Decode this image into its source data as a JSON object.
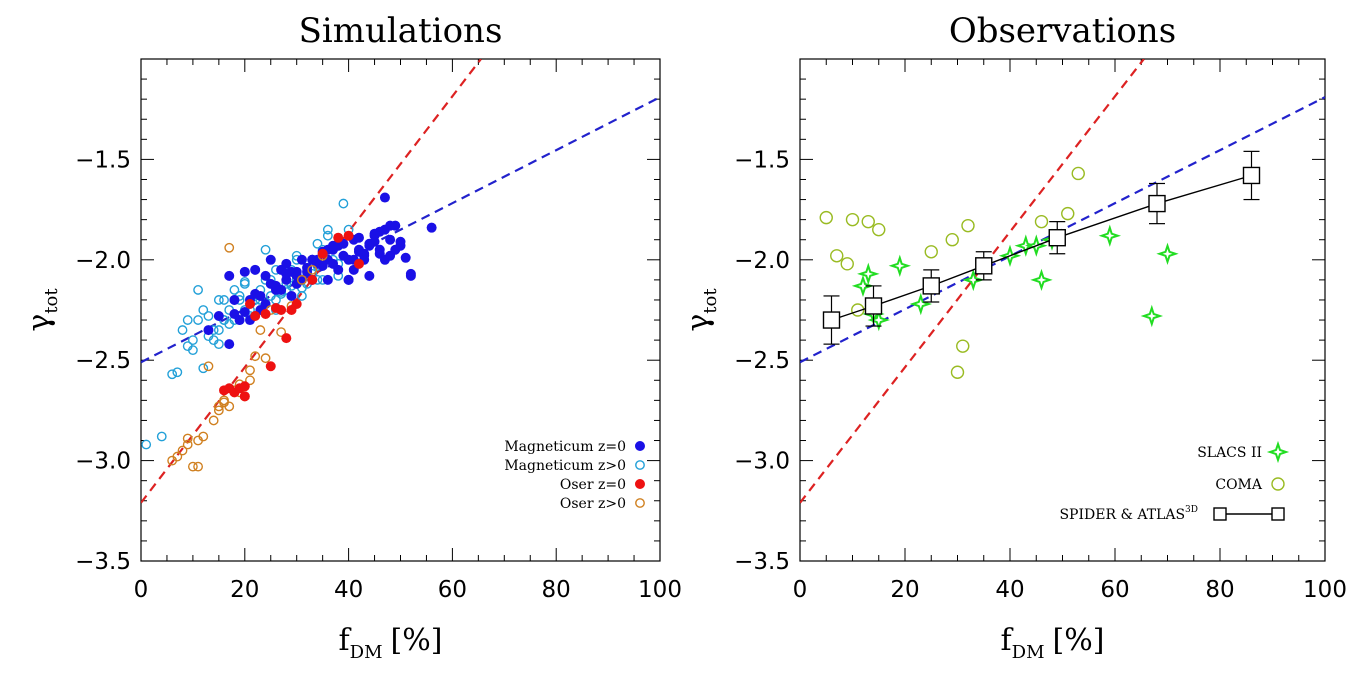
{
  "colors": {
    "magneticum": "#1a10e6",
    "magneticum_hi": "#22a0d8",
    "oser": "#ee1111",
    "oser_hi": "#d08020",
    "slacs": "#22dd22",
    "coma": "#99bb22",
    "fit_blue": "#2222cc",
    "fit_red": "#dd2222"
  },
  "chart_data": [
    {
      "type": "scatter",
      "title": "Simulations",
      "xlabel_main": "f",
      "xlabel_sub": "DM",
      "xlabel_unit": "[%]",
      "ylabel_main": "γ",
      "ylabel_sub": "tot",
      "xlim": [
        0,
        100
      ],
      "ylim": [
        -3.5,
        -1.0
      ],
      "x_ticks": [
        "0",
        "20",
        "40",
        "60",
        "80",
        "100"
      ],
      "x_tick_values": [
        0,
        20,
        40,
        60,
        80,
        100
      ],
      "y_ticks": [
        "−1.5",
        "−2.0",
        "−2.5",
        "−3.0",
        "−3.5"
      ],
      "y_tick_values": [
        -1.5,
        -2.0,
        -2.5,
        -3.0,
        -3.5
      ],
      "lines": [
        {
          "name": "fit-blue",
          "color": "#2222cc",
          "dash": true,
          "x": [
            0,
            100
          ],
          "y": [
            -2.51,
            -1.19
          ]
        },
        {
          "name": "fit-red",
          "color": "#dd2222",
          "dash": true,
          "x": [
            0,
            65.5
          ],
          "y": [
            -3.21,
            -1.0
          ]
        }
      ],
      "legend": {
        "position": "bottom-right",
        "entries": [
          {
            "label": "Magneticum z=0",
            "marker": "filled-circle",
            "color": "#1a10e6"
          },
          {
            "label": "Magneticum z>0",
            "marker": "open-circle",
            "color": "#22a0d8"
          },
          {
            "label": "Oser z=0",
            "marker": "filled-circle",
            "color": "#ee1111"
          },
          {
            "label": "Oser z>0",
            "marker": "open-circle",
            "color": "#d08020"
          }
        ]
      },
      "series": [
        {
          "key": "magneticum-z0",
          "marker": "filled-circle",
          "color": "#1a10e6",
          "x": [
            13,
            15,
            17,
            18,
            20,
            21,
            22,
            23,
            24,
            25,
            26,
            27,
            28,
            29,
            30,
            31,
            32,
            33,
            34,
            35,
            36,
            37,
            38,
            39,
            40,
            41,
            42,
            43,
            44,
            45,
            46,
            47,
            48,
            49,
            50,
            51,
            52,
            19,
            21,
            23,
            25,
            27,
            29,
            31,
            33,
            35,
            37,
            39,
            41,
            43,
            45,
            47,
            49,
            24,
            28,
            32,
            36,
            40,
            44,
            48,
            52,
            56,
            18,
            22,
            26,
            30,
            34,
            38,
            42,
            46,
            50,
            47,
            48,
            36,
            37,
            41,
            43,
            45,
            38,
            40,
            42,
            44,
            46,
            28,
            30,
            33,
            17,
            20
          ],
          "y": [
            -2.35,
            -2.28,
            -2.08,
            -2.27,
            -2.26,
            -2.2,
            -2.05,
            -2.18,
            -2.22,
            -2.0,
            -2.15,
            -2.05,
            -2.1,
            -2.18,
            -2.12,
            -2.0,
            -2.06,
            -2.1,
            -2.02,
            -2.03,
            -2.0,
            -1.95,
            -2.05,
            -1.98,
            -2.0,
            -1.9,
            -1.95,
            -2.0,
            -1.92,
            -1.88,
            -1.97,
            -1.85,
            -1.9,
            -1.95,
            -1.93,
            -1.99,
            -2.08,
            -2.3,
            -2.3,
            -2.25,
            -2.12,
            -2.15,
            -2.06,
            -2.1,
            -2.0,
            -1.96,
            -2.02,
            -1.92,
            -2.05,
            -1.98,
            -1.87,
            -2.0,
            -1.83,
            -2.08,
            -2.07,
            -2.04,
            -2.1,
            -2.1,
            -2.08,
            -1.98,
            -2.07,
            -1.84,
            -2.2,
            -2.17,
            -2.13,
            -2.06,
            -2.0,
            -1.93,
            -1.89,
            -1.95,
            -1.91,
            -1.69,
            -1.83,
            -1.95,
            -1.93,
            -2.0,
            -1.97,
            -1.91,
            -1.92,
            -2.1,
            -1.96,
            -1.93,
            -1.86,
            -2.02,
            -2.08,
            -2.0,
            -2.42,
            -2.06
          ]
        },
        {
          "key": "magneticum-z1",
          "marker": "open-circle",
          "color": "#22a0d8",
          "x": [
            1,
            4,
            6,
            7,
            8,
            9,
            10,
            11,
            12,
            13,
            14,
            15,
            16,
            17,
            18,
            19,
            20,
            21,
            22,
            23,
            24,
            25,
            26,
            27,
            28,
            29,
            30,
            31,
            32,
            33,
            34,
            35,
            36,
            37,
            38,
            10,
            12,
            14,
            16,
            18,
            20,
            22,
            24,
            26,
            28,
            30,
            32,
            34,
            36,
            38,
            13,
            15,
            17,
            19,
            21,
            23,
            25,
            27,
            29,
            31,
            33,
            35,
            39,
            40,
            11,
            9,
            15,
            19,
            23,
            27,
            31,
            35,
            38,
            16,
            18,
            20,
            24,
            26,
            30,
            34
          ],
          "y": [
            -2.92,
            -2.88,
            -2.57,
            -2.56,
            -2.35,
            -2.3,
            -2.4,
            -2.3,
            -2.25,
            -2.38,
            -2.35,
            -2.2,
            -2.3,
            -2.25,
            -2.3,
            -2.2,
            -2.12,
            -2.28,
            -2.2,
            -2.15,
            -2.22,
            -2.1,
            -2.25,
            -2.15,
            -2.12,
            -2.05,
            -2.1,
            -2.18,
            -2.08,
            -2.0,
            -2.1,
            -1.95,
            -1.85,
            -2.0,
            -1.93,
            -2.45,
            -2.54,
            -2.4,
            -2.2,
            -2.15,
            -2.25,
            -2.18,
            -2.1,
            -2.2,
            -2.15,
            -2.0,
            -2.12,
            -2.03,
            -1.88,
            -2.02,
            -2.28,
            -2.35,
            -2.32,
            -2.3,
            -2.25,
            -2.2,
            -2.18,
            -2.16,
            -2.13,
            -2.1,
            -2.07,
            -2.03,
            -1.72,
            -1.85,
            -2.15,
            -2.43,
            -2.42,
            -2.18,
            -2.2,
            -2.17,
            -2.14,
            -2.1,
            -2.08,
            -2.3,
            -2.2,
            -2.11,
            -1.95,
            -2.05,
            -1.98,
            -1.92
          ]
        },
        {
          "key": "oser-z0",
          "marker": "filled-circle",
          "color": "#ee1111",
          "x": [
            16,
            17,
            18,
            19,
            20,
            20,
            21,
            22,
            24,
            26,
            28,
            30,
            33,
            35,
            38,
            40,
            42,
            25,
            27,
            29
          ],
          "y": [
            -2.65,
            -2.64,
            -2.66,
            -2.64,
            -2.68,
            -2.63,
            -2.22,
            -2.28,
            -2.27,
            -2.24,
            -2.39,
            -2.22,
            -2.1,
            -1.97,
            -1.89,
            -1.88,
            -2.02,
            -2.53,
            -2.25,
            -2.25
          ]
        },
        {
          "key": "oser-z1",
          "marker": "open-circle",
          "color": "#d08020",
          "x": [
            6,
            7,
            8,
            9,
            10,
            11,
            12,
            14,
            15,
            16,
            17,
            18,
            19,
            20,
            21,
            22,
            23,
            25,
            27,
            29,
            31,
            33,
            35,
            17,
            13,
            9,
            11,
            19,
            21,
            24,
            15,
            16
          ],
          "y": [
            -3.0,
            -2.98,
            -2.95,
            -2.92,
            -3.03,
            -2.9,
            -2.88,
            -2.8,
            -2.75,
            -2.7,
            -2.73,
            -2.65,
            -2.62,
            -2.68,
            -2.55,
            -2.48,
            -2.35,
            -2.25,
            -2.36,
            -2.23,
            -2.1,
            -2.05,
            -1.98,
            -1.94,
            -2.53,
            -2.89,
            -3.03,
            -2.66,
            -2.6,
            -2.49,
            -2.73,
            -2.71
          ]
        }
      ]
    },
    {
      "type": "scatter",
      "title": "Observations",
      "xlabel_main": "f",
      "xlabel_sub": "DM",
      "xlabel_unit": "[%]",
      "ylabel_main": "γ",
      "ylabel_sub": "tot",
      "xlim": [
        0,
        100
      ],
      "ylim": [
        -3.5,
        -1.0
      ],
      "x_ticks": [
        "0",
        "20",
        "40",
        "60",
        "80",
        "100"
      ],
      "x_tick_values": [
        0,
        20,
        40,
        60,
        80,
        100
      ],
      "y_ticks": [
        "−1.5",
        "−2.0",
        "−2.5",
        "−3.0",
        "−3.5"
      ],
      "y_tick_values": [
        -1.5,
        -2.0,
        -2.5,
        -3.0,
        -3.5
      ],
      "lines": [
        {
          "name": "fit-blue",
          "color": "#2222cc",
          "dash": true,
          "x": [
            0,
            100
          ],
          "y": [
            -2.51,
            -1.19
          ]
        },
        {
          "name": "fit-red",
          "color": "#dd2222",
          "dash": true,
          "x": [
            0,
            65.5
          ],
          "y": [
            -3.21,
            -1.0
          ]
        }
      ],
      "legend": {
        "position": "bottom-right",
        "entries": [
          {
            "label": "SLACS II",
            "marker": "star",
            "color": "#22dd22"
          },
          {
            "label": "COMA",
            "marker": "open-circle",
            "color": "#99bb22"
          },
          {
            "label": "SPIDER & ATLAS",
            "label_sup": "3D",
            "marker": "square-line",
            "color": "#000000"
          }
        ]
      },
      "series": [
        {
          "key": "slacs",
          "marker": "star",
          "color": "#22dd22",
          "x": [
            12,
            13,
            14,
            15,
            19,
            23,
            33,
            40,
            43,
            45,
            46,
            48,
            59,
            67,
            70
          ],
          "y": [
            -2.13,
            -2.07,
            -2.27,
            -2.3,
            -2.03,
            -2.22,
            -2.1,
            -1.98,
            -1.93,
            -1.93,
            -2.1,
            -1.9,
            -1.88,
            -2.28,
            -1.97
          ]
        },
        {
          "key": "coma",
          "marker": "open-circle",
          "color": "#99bb22",
          "x": [
            5,
            7,
            9,
            10,
            11,
            13,
            15,
            25,
            29,
            30,
            31,
            32,
            46,
            51,
            53
          ],
          "y": [
            -1.79,
            -1.98,
            -2.02,
            -1.8,
            -2.25,
            -1.81,
            -1.85,
            -1.96,
            -1.9,
            -2.56,
            -2.43,
            -1.83,
            -1.81,
            -1.77,
            -1.57
          ]
        },
        {
          "key": "spider",
          "marker": "square-line",
          "color": "#000000",
          "x": [
            6,
            14,
            25,
            35,
            49,
            68,
            86
          ],
          "y": [
            -2.3,
            -2.23,
            -2.13,
            -2.03,
            -1.89,
            -1.72,
            -1.58
          ],
          "err": [
            0.12,
            0.1,
            0.08,
            0.07,
            0.08,
            0.1,
            0.12
          ]
        }
      ]
    }
  ]
}
